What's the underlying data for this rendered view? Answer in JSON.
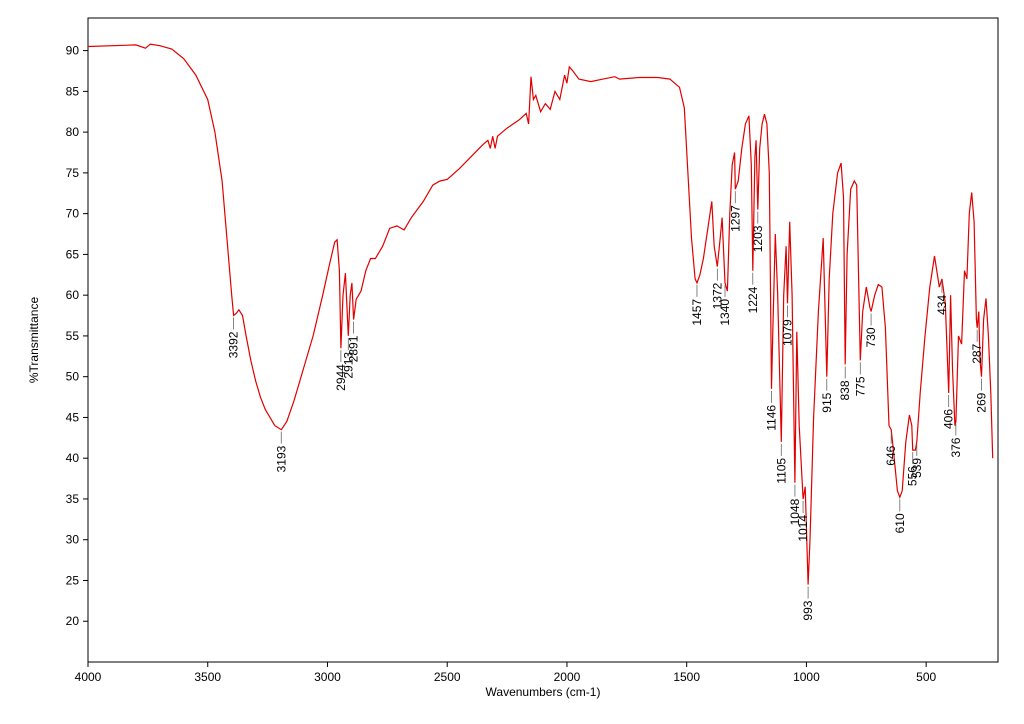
{
  "chart_data": {
    "type": "line",
    "xlabel": "Wavenumbers (cm-1)",
    "ylabel": "%Transmittance",
    "xlim": [
      4000,
      200
    ],
    "ylim": [
      15,
      94
    ],
    "xticks": [
      4000,
      3500,
      3000,
      2500,
      2000,
      1500,
      1000,
      500
    ],
    "yticks": [
      20,
      25,
      30,
      35,
      40,
      45,
      50,
      55,
      60,
      65,
      70,
      75,
      80,
      85,
      90
    ],
    "color": "#e00000",
    "x": [
      4000,
      3800,
      3760,
      3740,
      3700,
      3650,
      3600,
      3550,
      3500,
      3470,
      3440,
      3420,
      3400,
      3392,
      3380,
      3370,
      3355,
      3340,
      3320,
      3300,
      3280,
      3260,
      3240,
      3220,
      3193,
      3170,
      3140,
      3100,
      3060,
      3020,
      2990,
      2970,
      2960,
      2950,
      2944,
      2935,
      2925,
      2913,
      2905,
      2898,
      2891,
      2880,
      2860,
      2840,
      2820,
      2800,
      2770,
      2740,
      2710,
      2680,
      2650,
      2600,
      2560,
      2530,
      2500,
      2450,
      2400,
      2350,
      2330,
      2320,
      2310,
      2300,
      2290,
      2250,
      2200,
      2170,
      2160,
      2150,
      2140,
      2130,
      2110,
      2090,
      2070,
      2050,
      2030,
      2010,
      2000,
      1990,
      1975,
      1950,
      1900,
      1850,
      1800,
      1780,
      1700,
      1620,
      1570,
      1530,
      1510,
      1495,
      1480,
      1465,
      1457,
      1445,
      1430,
      1410,
      1395,
      1385,
      1372,
      1360,
      1352,
      1340,
      1330,
      1320,
      1310,
      1300,
      1297,
      1285,
      1270,
      1255,
      1240,
      1230,
      1224,
      1215,
      1210,
      1203,
      1195,
      1185,
      1175,
      1165,
      1155,
      1146,
      1140,
      1130,
      1120,
      1105,
      1095,
      1085,
      1079,
      1070,
      1060,
      1048,
      1040,
      1030,
      1014,
      1005,
      993,
      985,
      970,
      950,
      930,
      915,
      905,
      890,
      870,
      855,
      845,
      838,
      830,
      815,
      800,
      790,
      775,
      765,
      750,
      735,
      730,
      715,
      700,
      685,
      670,
      655,
      646,
      635,
      620,
      610,
      600,
      585,
      570,
      560,
      556,
      545,
      539,
      525,
      505,
      485,
      465,
      445,
      434,
      420,
      406,
      398,
      390,
      380,
      376,
      365,
      352,
      340,
      330,
      320,
      310,
      300,
      290,
      287,
      280,
      275,
      269,
      260,
      250,
      240,
      230,
      222
    ],
    "y": [
      90.5,
      90.7,
      90.3,
      90.8,
      90.6,
      90.2,
      89,
      87,
      84,
      80,
      74,
      67,
      60,
      57.5,
      57.8,
      58.2,
      57.5,
      55,
      52,
      49.5,
      47.5,
      46,
      45,
      44,
      43.5,
      44.5,
      47,
      51,
      55,
      60,
      64,
      66.5,
      66.8,
      63,
      53.5,
      60,
      62.7,
      55,
      60,
      61.5,
      57,
      59.5,
      60.5,
      63,
      64.5,
      64.5,
      66,
      68.2,
      68.5,
      68,
      69.5,
      71.5,
      73.5,
      74,
      74.2,
      75.5,
      77,
      78.5,
      79,
      78,
      79.5,
      78,
      79.5,
      80.5,
      81.5,
      82.3,
      81,
      86.8,
      84,
      84.5,
      82.5,
      83.5,
      82.8,
      85,
      84,
      87,
      86,
      88,
      87.5,
      86.5,
      86.2,
      86.5,
      86.8,
      86.5,
      86.7,
      86.7,
      86.5,
      85.5,
      83,
      75,
      67,
      62,
      61.5,
      62.5,
      64.5,
      68.5,
      71.5,
      66,
      63.5,
      67,
      69.5,
      61.5,
      60.5,
      70,
      76,
      77.5,
      73,
      74,
      78,
      81,
      82,
      76,
      63,
      77,
      79,
      70.5,
      78,
      81,
      82.2,
      81,
      75,
      48.5,
      56,
      67.5,
      60,
      42,
      60,
      66,
      59,
      69,
      60,
      37,
      55.5,
      44,
      35,
      36.5,
      24.5,
      30,
      45,
      58,
      67,
      50,
      62,
      70,
      75,
      76.2,
      72,
      51.5,
      65,
      73,
      74,
      73.5,
      52,
      58,
      61,
      58.5,
      58,
      60,
      61.3,
      61,
      56,
      44,
      43.5,
      40.5,
      36,
      35.2,
      36,
      42,
      45.3,
      44,
      41,
      41,
      42,
      48,
      55,
      61,
      64.8,
      61,
      62,
      59,
      48,
      60,
      51,
      44,
      44.5,
      55,
      54,
      63,
      62,
      70,
      72.6,
      69,
      57,
      56,
      58,
      52,
      50,
      57,
      59.6,
      55,
      48,
      40
    ],
    "peaks": [
      {
        "x": 3392,
        "y": 57.5
      },
      {
        "x": 3193,
        "y": 43.5
      },
      {
        "x": 2944,
        "y": 53.5
      },
      {
        "x": 2913,
        "y": 55
      },
      {
        "x": 2891,
        "y": 57
      },
      {
        "x": 1457,
        "y": 61.5
      },
      {
        "x": 1372,
        "y": 63.5
      },
      {
        "x": 1340,
        "y": 61.5
      },
      {
        "x": 1297,
        "y": 73
      },
      {
        "x": 1224,
        "y": 63
      },
      {
        "x": 1203,
        "y": 70.5
      },
      {
        "x": 1146,
        "y": 48.5
      },
      {
        "x": 1105,
        "y": 42
      },
      {
        "x": 1079,
        "y": 59
      },
      {
        "x": 1048,
        "y": 37
      },
      {
        "x": 1014,
        "y": 35
      },
      {
        "x": 993,
        "y": 24.5
      },
      {
        "x": 915,
        "y": 50
      },
      {
        "x": 838,
        "y": 51.5
      },
      {
        "x": 775,
        "y": 52
      },
      {
        "x": 730,
        "y": 58
      },
      {
        "x": 646,
        "y": 43.5
      },
      {
        "x": 610,
        "y": 35.2
      },
      {
        "x": 556,
        "y": 41
      },
      {
        "x": 539,
        "y": 42
      },
      {
        "x": 434,
        "y": 62
      },
      {
        "x": 406,
        "y": 48
      },
      {
        "x": 376,
        "y": 44.5
      },
      {
        "x": 287,
        "y": 56
      },
      {
        "x": 269,
        "y": 50
      }
    ]
  }
}
